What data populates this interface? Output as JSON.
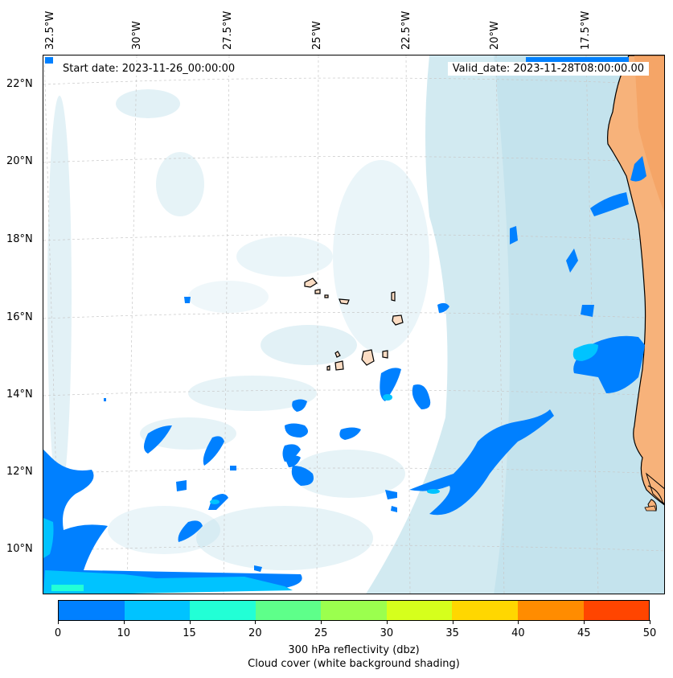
{
  "header": {
    "start_date": "Start date: 2023-11-26_00:00:00",
    "valid_date": "Valid_date: 2023-11-28T08:00:00.00"
  },
  "map": {
    "lon_labels": [
      "32.5°W",
      "30°W",
      "27.5°W",
      "25°W",
      "22.5°W",
      "20°W",
      "17.5°W"
    ],
    "lat_labels": [
      "22°N",
      "20°N",
      "18°N",
      "16°N",
      "14°N",
      "12°N",
      "10°N"
    ],
    "colors": {
      "land": "#f7b27a",
      "land_dark": "#f39c5a",
      "cloud": "#add8e6",
      "islands": "#fbdcc3",
      "coast": "#000000"
    }
  },
  "colorbar": {
    "colors": [
      "#0080ff",
      "#00c3ff",
      "#22ffd6",
      "#5eff8a",
      "#9bff4e",
      "#d6ff1c",
      "#ffd700",
      "#ff8c00",
      "#ff4500"
    ],
    "ticks": [
      "0",
      "10",
      "15",
      "20",
      "25",
      "30",
      "35",
      "40",
      "45",
      "50"
    ],
    "label_line1": "300 hPa reflectivity (dbz)",
    "label_line2": "Cloud cover (white background shading)"
  }
}
